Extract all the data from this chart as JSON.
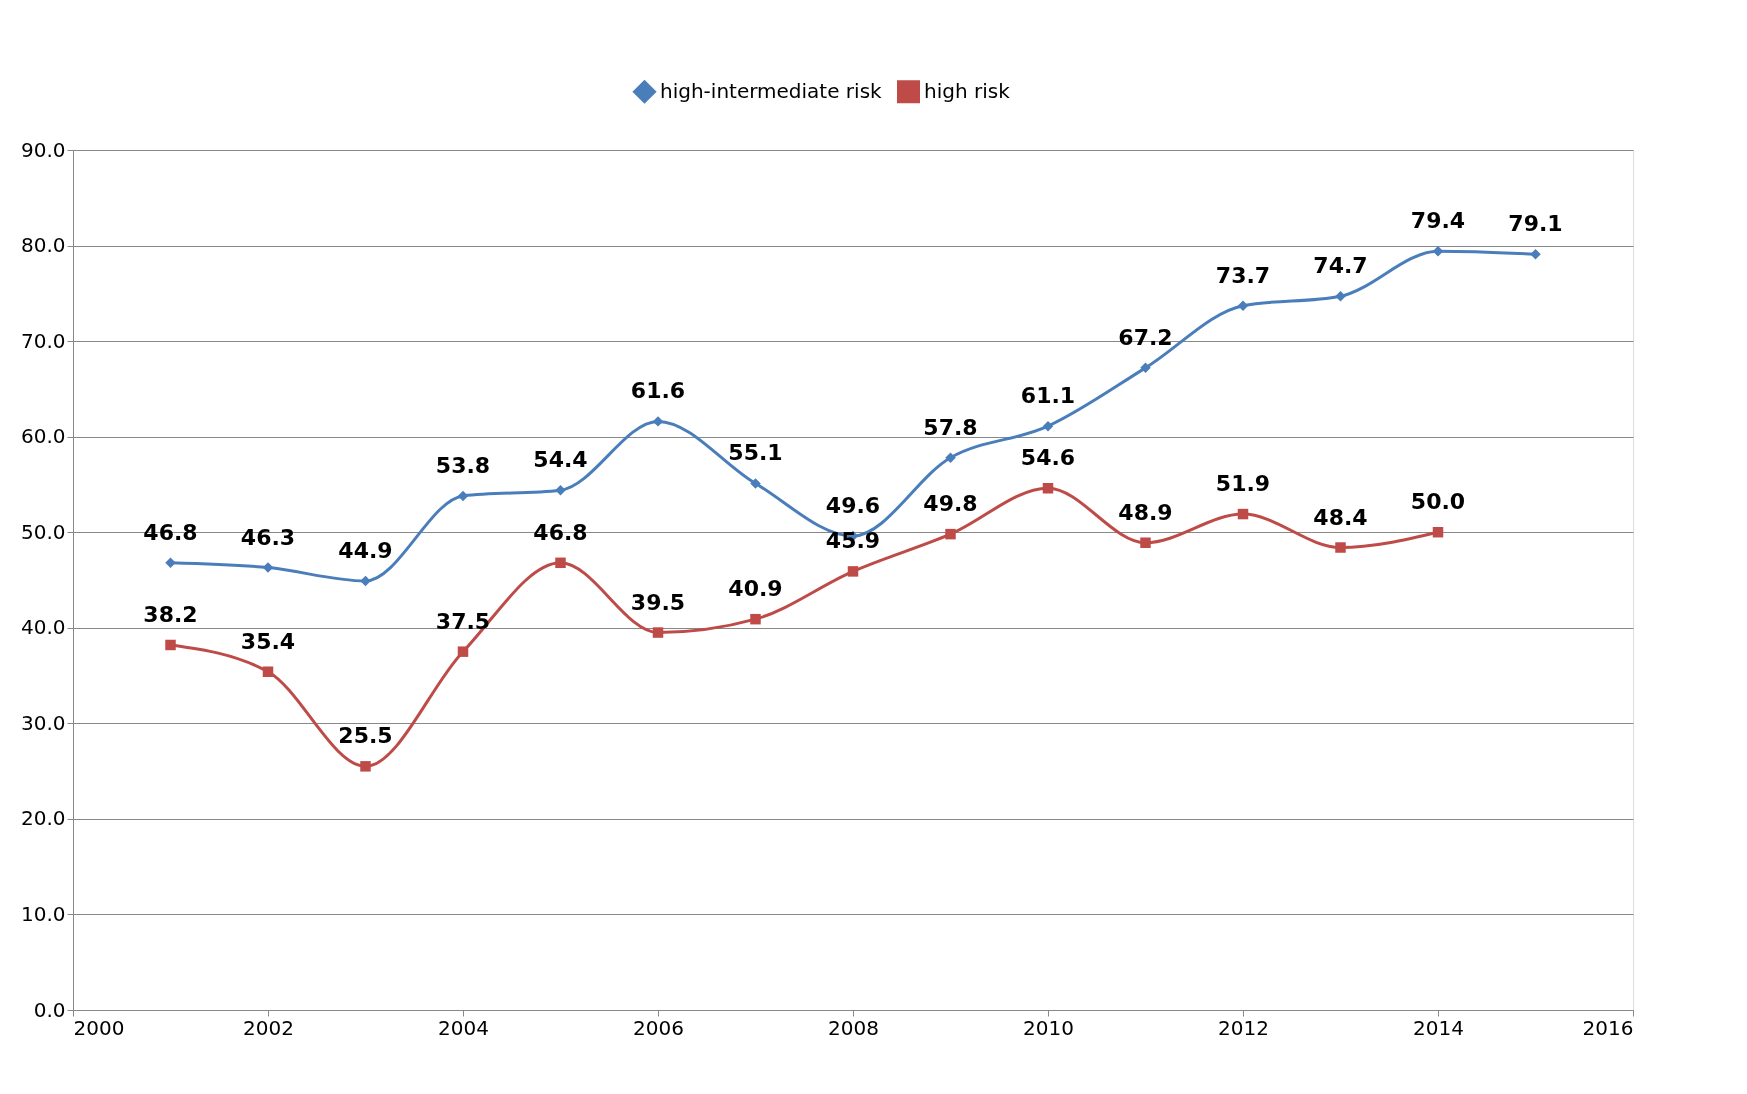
{
  "chart_data": {
    "type": "line",
    "x": [
      2001,
      2002,
      2003,
      2004,
      2005,
      2006,
      2007,
      2008,
      2009,
      2010,
      2011,
      2012,
      2013,
      2014,
      2015
    ],
    "series": [
      {
        "name": "high-intermediate risk",
        "color": "#4a7ebb",
        "marker": "diamond",
        "values": [
          46.8,
          46.3,
          44.9,
          53.8,
          54.4,
          61.6,
          55.1,
          49.6,
          57.8,
          61.1,
          67.2,
          73.7,
          74.7,
          79.4,
          79.1
        ],
        "value_labels": [
          "46.8",
          "46.3",
          "44.9",
          "53.8",
          "54.4",
          "61.6",
          "55.1",
          "49.6",
          "57.8",
          "61.1",
          "67.2",
          "73.7",
          "74.7",
          "79.4",
          "79.1"
        ]
      },
      {
        "name": "high risk",
        "color": "#be4b48",
        "marker": "square",
        "x": [
          2001,
          2002,
          2003,
          2004,
          2005,
          2006,
          2007,
          2008,
          2009,
          2010,
          2011,
          2012,
          2013,
          2014
        ],
        "values": [
          38.2,
          35.4,
          25.5,
          37.5,
          46.8,
          39.5,
          40.9,
          45.9,
          49.8,
          54.6,
          48.9,
          51.9,
          48.4,
          50.0
        ],
        "value_labels": [
          "38.2",
          "35.4",
          "25.5",
          "37.5",
          "46.8",
          "39.5",
          "40.9",
          "45.9",
          "49.8",
          "54.6",
          "48.9",
          "51.9",
          "48.4",
          "50.0"
        ]
      }
    ],
    "xlim": [
      2000,
      2016
    ],
    "xticks": [
      2000,
      2002,
      2004,
      2006,
      2008,
      2010,
      2012,
      2014,
      2016
    ],
    "ylim": [
      0,
      90
    ],
    "yticks": [
      {
        "value": 0,
        "label": "0.0"
      },
      {
        "value": 10,
        "label": "10.0"
      },
      {
        "value": 20,
        "label": "20.0"
      },
      {
        "value": 30,
        "label": "30.0"
      },
      {
        "value": 40,
        "label": "40.0"
      },
      {
        "value": 50,
        "label": "50.0"
      },
      {
        "value": 60,
        "label": "60.0"
      },
      {
        "value": 70,
        "label": "70.0"
      },
      {
        "value": 80,
        "label": "80.0"
      },
      {
        "value": 90,
        "label": "90.0"
      }
    ],
    "grid": "y",
    "legend": "top",
    "line_style": "solid"
  }
}
